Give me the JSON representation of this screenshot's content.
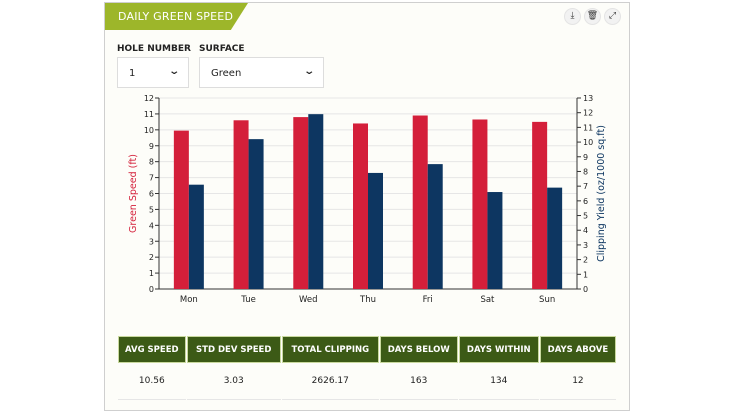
{
  "widget": {
    "title": "DAILY GREEN SPEED",
    "icons": [
      "download-icon",
      "trash-icon",
      "expand-icon"
    ]
  },
  "filters": {
    "hole_label": "HOLE NUMBER",
    "hole_value": "1",
    "surface_label": "SURFACE",
    "surface_value": "Green"
  },
  "chart_data": {
    "type": "bar",
    "categories": [
      "Mon",
      "Tue",
      "Wed",
      "Thu",
      "Fri",
      "Sat",
      "Sun"
    ],
    "series": [
      {
        "axis": "left",
        "color": "#d41f3a",
        "values": [
          9.95,
          10.6,
          10.8,
          10.4,
          10.9,
          10.65,
          10.5
        ]
      },
      {
        "axis": "right",
        "color": "#0d3661",
        "values": [
          7.1,
          10.2,
          11.9,
          7.9,
          8.5,
          6.6,
          6.9
        ]
      }
    ],
    "ylabel": "Green Speed (ft)",
    "ylabel_right": "Clipping Yield (oz/1000 sq.ft)",
    "ylim": [
      0,
      12
    ],
    "ylim_right": [
      0,
      13
    ],
    "grid": true
  },
  "stats": {
    "headers": [
      "AVG SPEED",
      "STD DEV SPEED",
      "TOTAL CLIPPING",
      "DAYS BELOW",
      "DAYS WITHIN",
      "DAYS ABOVE"
    ],
    "values": [
      "10.56",
      "3.03",
      "2626.17",
      "163",
      "134",
      "12"
    ]
  }
}
